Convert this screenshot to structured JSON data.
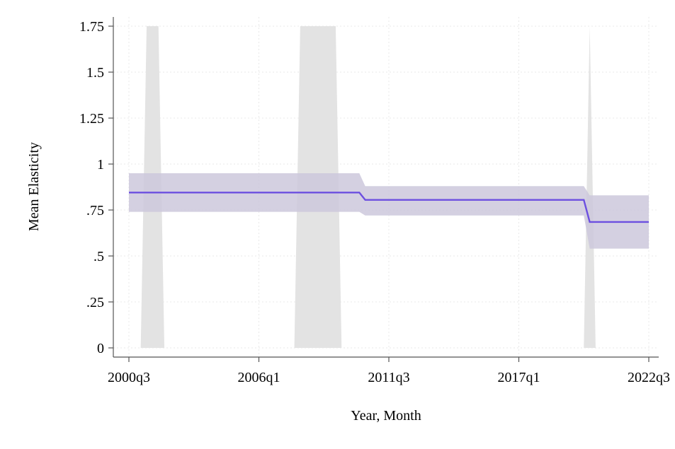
{
  "chart_data": {
    "type": "line",
    "title": "",
    "xlabel": "Year, Month",
    "ylabel": "Mean Elasticity",
    "x_tick_labels": [
      "2000q3",
      "2006q1",
      "2011q3",
      "2017q1",
      "2022q3"
    ],
    "y_tick_labels": [
      "0",
      ".25",
      ".5",
      ".75",
      "1",
      "1.25",
      "1.5",
      "1.75"
    ],
    "y_tick_values": [
      0,
      0.25,
      0.5,
      0.75,
      1,
      1.25,
      1.5,
      1.75
    ],
    "ylim": [
      0,
      1.75
    ],
    "xlim": [
      "2000q3",
      "2022q3"
    ],
    "grid": true,
    "legend": "none",
    "recession_bands": [
      {
        "rise_start": "2001q1",
        "top_start": "2001q2",
        "top_end": "2001q4",
        "fall_end": "2002q1"
      },
      {
        "rise_start": "2007q3",
        "top_start": "2007q4",
        "top_end": "2009q2",
        "fall_end": "2009q3"
      },
      {
        "rise_start": "2019q4",
        "top_start": "2020q1",
        "top_end": "2020q1",
        "fall_end": "2020q2"
      }
    ],
    "series": [
      {
        "x": [
          "2000q3",
          "2010q2",
          "2010q3",
          "2019q4",
          "2020q1",
          "2022q3"
        ],
        "values": [
          0.845,
          0.845,
          0.805,
          0.805,
          0.685,
          0.685
        ],
        "ci_upper": [
          0.95,
          0.95,
          0.88,
          0.88,
          0.83,
          0.83
        ],
        "ci_lower": [
          0.74,
          0.74,
          0.72,
          0.72,
          0.54,
          0.54
        ]
      }
    ],
    "colors": {
      "line": "#6c4fe0",
      "ci_fill": "#cdc8dc",
      "recession_fill": "#e3e3e3",
      "grid": "#e8e8e8",
      "axis": "#555555"
    }
  }
}
